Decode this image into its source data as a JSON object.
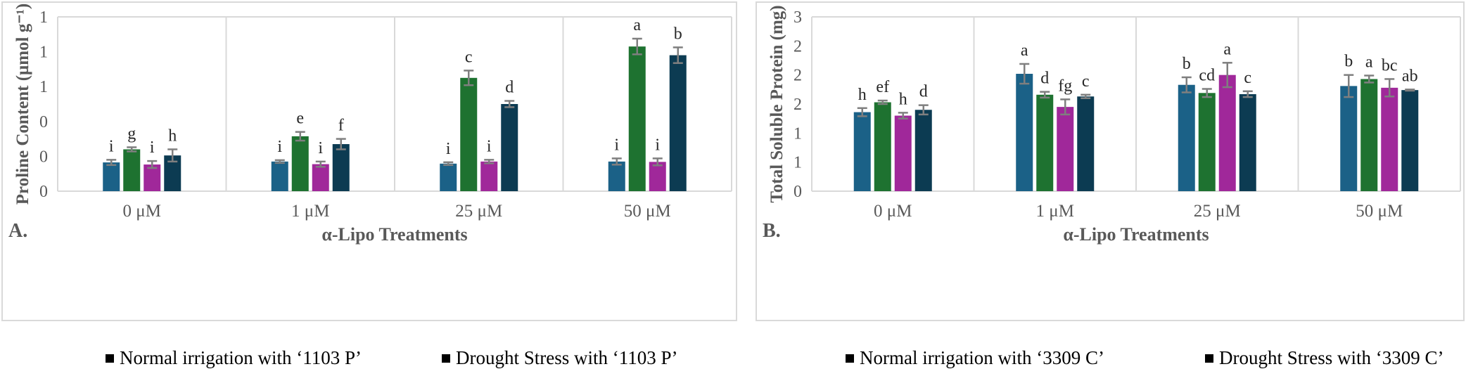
{
  "colors": {
    "series": [
      "#1b6187",
      "#1e7230",
      "#a0289a",
      "#0c3b52"
    ],
    "grid": "#d9d9d9",
    "axis_text": "#595959",
    "errorbar": "#7f7f7f"
  },
  "legend": [
    {
      "label": "Normal irrigation with ‘1103 P’"
    },
    {
      "label": "Drought Stress with ‘1103 P’"
    },
    {
      "label": "Normal irrigation with ‘3309 C’"
    },
    {
      "label": "Drought Stress with ‘3309 C’"
    }
  ],
  "chart_data": [
    {
      "type": "bar",
      "panel_label": "A.",
      "ylabel": "Proline Content (μmol g⁻¹)",
      "xlabel": "α-Lipo Treatments",
      "categories": [
        "0 μM",
        "1 μM",
        "25 μM",
        "50 μM"
      ],
      "ylim": [
        0,
        1.0
      ],
      "yticks": [
        0,
        0.2,
        0.4,
        0.6,
        0.8,
        1.0
      ],
      "ytick_labels": [
        "0",
        "0",
        "0",
        "1",
        "1",
        "1"
      ],
      "grid": "vertical category separators",
      "series": [
        {
          "values": [
            0.165,
            0.17,
            0.158,
            0.17
          ],
          "errors": [
            0.015,
            0.008,
            0.008,
            0.018
          ],
          "letters": [
            "i",
            "i",
            "i",
            "i"
          ]
        },
        {
          "values": [
            0.24,
            0.315,
            0.65,
            0.83
          ],
          "errors": [
            0.012,
            0.025,
            0.042,
            0.045
          ],
          "letters": [
            "g",
            "e",
            "c",
            "a"
          ]
        },
        {
          "values": [
            0.153,
            0.155,
            0.17,
            0.168
          ],
          "errors": [
            0.02,
            0.015,
            0.01,
            0.02
          ],
          "letters": [
            "i",
            "i",
            "i",
            "i"
          ]
        },
        {
          "values": [
            0.205,
            0.27,
            0.5,
            0.78
          ],
          "errors": [
            0.035,
            0.03,
            0.018,
            0.045
          ],
          "letters": [
            "h",
            "f",
            "d",
            "b"
          ]
        }
      ]
    },
    {
      "type": "bar",
      "panel_label": "B.",
      "ylabel": "Total Soluble Protein (mg)",
      "xlabel": "α-Lipo Treatments",
      "categories": [
        "0 μM",
        "1 μM",
        "25 μM",
        "50 μM"
      ],
      "ylim": [
        0,
        3
      ],
      "yticks": [
        0,
        0.5,
        1.0,
        1.5,
        2.0,
        2.5,
        3.0
      ],
      "ytick_labels": [
        "0",
        "1",
        "1",
        "2",
        "2",
        "2",
        "3"
      ],
      "grid": "vertical category separators",
      "series": [
        {
          "values": [
            1.36,
            2.02,
            1.83,
            1.81
          ],
          "errors": [
            0.07,
            0.17,
            0.13,
            0.19
          ],
          "letters": [
            "h",
            "a",
            "b",
            "b"
          ]
        },
        {
          "values": [
            1.53,
            1.66,
            1.69,
            1.93
          ],
          "errors": [
            0.03,
            0.05,
            0.07,
            0.06
          ],
          "letters": [
            "ef",
            "d",
            "cd",
            "a"
          ]
        },
        {
          "values": [
            1.3,
            1.45,
            2.0,
            1.78
          ],
          "errors": [
            0.05,
            0.13,
            0.21,
            0.15
          ],
          "letters": [
            "h",
            "fg",
            "a",
            "bc"
          ]
        },
        {
          "values": [
            1.4,
            1.63,
            1.67,
            1.74
          ],
          "errors": [
            0.08,
            0.03,
            0.05,
            0.01
          ],
          "letters": [
            "d",
            "c",
            "c",
            "ab"
          ]
        }
      ]
    }
  ]
}
